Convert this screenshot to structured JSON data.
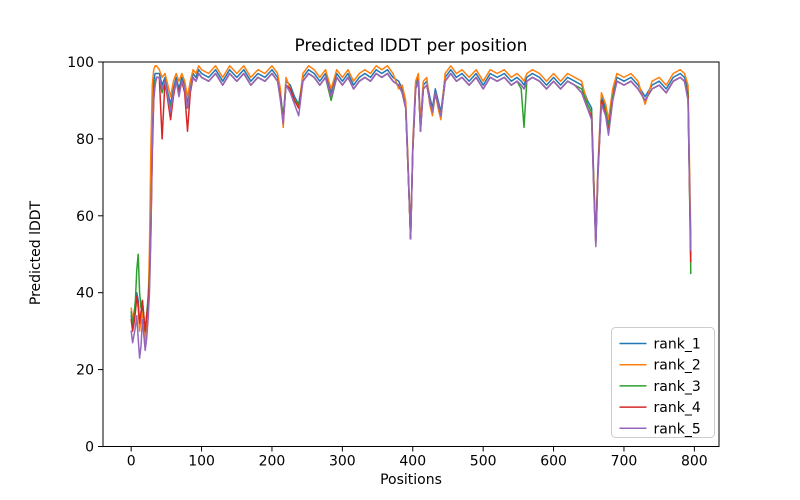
{
  "figure": {
    "title": "Predicted lDDT per position",
    "xlabel": "Positions",
    "ylabel": "Predicted lDDT",
    "background_color": "#ffffff",
    "spine_color": "#000000",
    "legend_border_color": "#cccccc"
  },
  "chart_data": {
    "type": "line",
    "title": "Predicted lDDT per position",
    "xlabel": "Positions",
    "ylabel": "Predicted lDDT",
    "xlim": [
      -40,
      835
    ],
    "ylim": [
      0,
      100
    ],
    "xticks": [
      0,
      100,
      200,
      300,
      400,
      500,
      600,
      700,
      800
    ],
    "yticks": [
      0,
      20,
      40,
      60,
      80,
      100
    ],
    "grid": false,
    "legend_position": "lower right",
    "x": [
      0,
      2,
      4,
      6,
      8,
      10,
      12,
      14,
      16,
      18,
      20,
      22,
      24,
      26,
      28,
      30,
      32,
      34,
      36,
      40,
      44,
      48,
      52,
      56,
      60,
      64,
      68,
      72,
      76,
      80,
      84,
      88,
      92,
      96,
      100,
      110,
      120,
      130,
      140,
      150,
      160,
      170,
      180,
      190,
      200,
      208,
      212,
      216,
      220,
      226,
      232,
      238,
      244,
      252,
      260,
      268,
      276,
      284,
      292,
      300,
      308,
      316,
      324,
      332,
      340,
      348,
      356,
      364,
      372,
      380,
      385,
      390,
      393,
      397,
      400,
      404,
      408,
      411,
      415,
      420,
      424,
      428,
      432,
      436,
      440,
      446,
      454,
      462,
      470,
      480,
      490,
      500,
      510,
      520,
      530,
      540,
      548,
      554,
      558,
      562,
      570,
      580,
      590,
      600,
      610,
      620,
      630,
      640,
      648,
      654,
      657,
      660,
      663,
      668,
      674,
      678,
      684,
      690,
      700,
      710,
      720,
      730,
      740,
      750,
      760,
      770,
      780,
      786,
      791,
      795
    ],
    "series": [
      {
        "name": "rank_1",
        "color": "#1f77b4",
        "values": [
          34,
          31,
          33,
          36,
          40,
          38,
          31,
          34,
          37,
          33,
          29,
          33,
          38,
          45,
          62,
          84,
          95,
          97,
          97,
          97,
          94,
          96,
          92,
          89,
          93,
          96,
          93,
          96,
          94,
          89,
          94,
          97,
          96,
          98,
          97,
          96,
          98,
          95,
          98,
          96,
          98,
          95,
          97,
          96,
          98,
          96,
          92,
          85,
          95,
          94,
          91,
          89,
          96,
          98,
          97,
          95,
          97,
          92,
          97,
          95,
          97,
          94,
          96,
          97,
          96,
          98,
          97,
          98,
          96,
          95,
          93,
          89,
          75,
          54,
          78,
          94,
          96,
          83,
          94,
          95,
          91,
          88,
          93,
          90,
          87,
          96,
          98,
          96,
          97,
          95,
          97,
          94,
          97,
          96,
          97,
          95,
          96,
          95,
          94,
          96,
          97,
          96,
          94,
          96,
          94,
          96,
          95,
          94,
          90,
          88,
          70,
          53,
          72,
          91,
          88,
          84,
          92,
          96,
          95,
          96,
          94,
          91,
          94,
          95,
          93,
          96,
          97,
          96,
          93,
          50
        ]
      },
      {
        "name": "rank_2",
        "color": "#ff7f0e",
        "values": [
          36,
          33,
          35,
          37,
          38,
          36,
          30,
          33,
          35,
          31,
          27,
          31,
          36,
          52,
          78,
          94,
          98,
          99,
          99,
          98,
          96,
          97,
          94,
          91,
          95,
          97,
          95,
          97,
          95,
          91,
          95,
          98,
          97,
          99,
          98,
          97,
          99,
          96,
          99,
          97,
          99,
          96,
          98,
          97,
          99,
          97,
          93,
          83,
          96,
          93,
          90,
          88,
          97,
          99,
          98,
          96,
          98,
          93,
          98,
          96,
          98,
          95,
          97,
          98,
          97,
          99,
          98,
          99,
          97,
          93,
          94,
          90,
          76,
          54,
          79,
          95,
          97,
          84,
          95,
          96,
          89,
          86,
          92,
          88,
          85,
          97,
          99,
          97,
          98,
          96,
          98,
          95,
          98,
          97,
          98,
          96,
          97,
          96,
          95,
          97,
          98,
          97,
          95,
          97,
          95,
          97,
          96,
          95,
          89,
          87,
          70,
          54,
          73,
          92,
          89,
          85,
          93,
          97,
          96,
          97,
          95,
          89,
          95,
          96,
          94,
          97,
          98,
          97,
          94,
          55
        ]
      },
      {
        "name": "rank_3",
        "color": "#2ca02c",
        "values": [
          35,
          32,
          34,
          38,
          46,
          50,
          40,
          36,
          38,
          34,
          30,
          34,
          39,
          44,
          58,
          78,
          91,
          95,
          96,
          96,
          92,
          95,
          91,
          88,
          92,
          95,
          92,
          95,
          93,
          88,
          93,
          96,
          95,
          97,
          96,
          95,
          97,
          94,
          97,
          95,
          97,
          94,
          96,
          95,
          97,
          95,
          91,
          86,
          94,
          93,
          90,
          89,
          95,
          97,
          96,
          94,
          96,
          90,
          96,
          94,
          96,
          93,
          95,
          96,
          95,
          97,
          96,
          97,
          95,
          94,
          92,
          88,
          74,
          54,
          77,
          93,
          95,
          82,
          93,
          94,
          90,
          87,
          92,
          89,
          86,
          95,
          97,
          95,
          96,
          94,
          96,
          93,
          96,
          95,
          96,
          94,
          95,
          93,
          83,
          95,
          96,
          95,
          93,
          95,
          93,
          95,
          94,
          93,
          89,
          87,
          69,
          53,
          71,
          90,
          87,
          83,
          91,
          95,
          94,
          95,
          93,
          90,
          93,
          94,
          92,
          95,
          96,
          95,
          92,
          45
        ]
      },
      {
        "name": "rank_4",
        "color": "#d62728",
        "values": [
          33,
          30,
          32,
          35,
          39,
          37,
          32,
          35,
          38,
          34,
          30,
          34,
          37,
          43,
          56,
          76,
          90,
          94,
          96,
          96,
          80,
          95,
          90,
          85,
          91,
          95,
          92,
          95,
          92,
          82,
          92,
          96,
          95,
          97,
          96,
          95,
          97,
          94,
          97,
          95,
          97,
          94,
          96,
          95,
          97,
          95,
          91,
          84,
          94,
          93,
          90,
          88,
          95,
          97,
          96,
          94,
          96,
          91,
          96,
          94,
          96,
          93,
          95,
          96,
          95,
          97,
          96,
          97,
          95,
          94,
          92,
          88,
          74,
          54,
          77,
          93,
          95,
          82,
          93,
          94,
          90,
          87,
          92,
          89,
          86,
          95,
          97,
          95,
          96,
          94,
          96,
          93,
          96,
          95,
          96,
          94,
          95,
          94,
          93,
          95,
          96,
          95,
          93,
          95,
          93,
          95,
          94,
          92,
          88,
          86,
          68,
          53,
          71,
          90,
          86,
          82,
          90,
          95,
          94,
          95,
          93,
          90,
          93,
          94,
          92,
          95,
          96,
          95,
          91,
          48
        ]
      },
      {
        "name": "rank_5",
        "color": "#9467bd",
        "values": [
          30,
          27,
          29,
          31,
          34,
          28,
          23,
          26,
          33,
          29,
          25,
          28,
          33,
          40,
          55,
          80,
          91,
          94,
          96,
          96,
          93,
          95,
          91,
          87,
          92,
          95,
          91,
          95,
          93,
          88,
          93,
          96,
          95,
          97,
          96,
          95,
          97,
          94,
          97,
          95,
          97,
          94,
          96,
          95,
          97,
          95,
          90,
          84,
          94,
          92,
          89,
          86,
          95,
          97,
          96,
          94,
          96,
          91,
          96,
          94,
          96,
          93,
          95,
          96,
          95,
          97,
          96,
          97,
          95,
          94,
          92,
          88,
          74,
          54,
          77,
          93,
          95,
          82,
          93,
          94,
          90,
          87,
          92,
          89,
          86,
          95,
          97,
          95,
          96,
          94,
          96,
          93,
          96,
          95,
          96,
          94,
          95,
          94,
          93,
          95,
          96,
          95,
          93,
          95,
          93,
          95,
          94,
          92,
          88,
          85,
          67,
          52,
          70,
          89,
          86,
          81,
          90,
          95,
          94,
          95,
          93,
          90,
          93,
          94,
          92,
          95,
          96,
          95,
          90,
          51
        ]
      }
    ]
  }
}
